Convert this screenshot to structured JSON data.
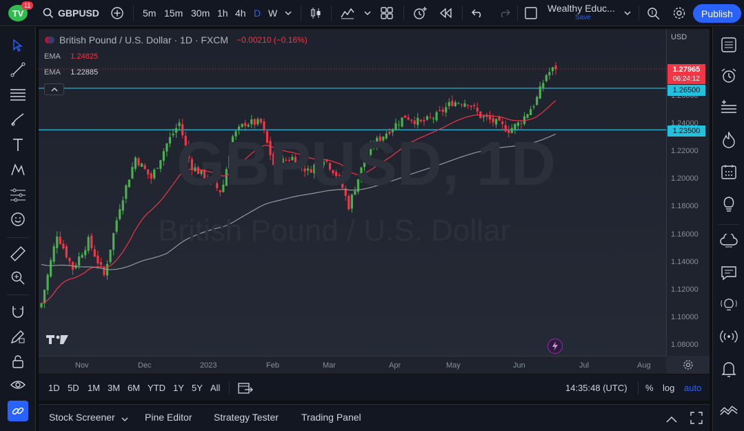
{
  "topbar": {
    "logo_text": "TV",
    "notification_count": "11",
    "symbol": "GBPUSD",
    "intervals": [
      "5m",
      "15m",
      "30m",
      "1h",
      "4h",
      "D",
      "W"
    ],
    "active_interval": "D",
    "layout_name": "Wealthy Educ...",
    "save_label": "Save",
    "publish_label": "Publish"
  },
  "chart": {
    "title": "British Pound / U.S. Dollar · 1D · FXCM",
    "change": "−0.00210 (−0.16%)",
    "ema1_label": "EMA",
    "ema1_value": "1.24825",
    "ema2_label": "EMA",
    "ema2_value": "1.22885",
    "watermark_symbol": "GBPUSD, 1D",
    "watermark_name": "British Pound / U.S. Dollar",
    "currency": "USD",
    "price_ticks": [
      "1.26000",
      "1.24000",
      "1.22000",
      "1.20000",
      "1.18000",
      "1.16000",
      "1.14000",
      "1.12000",
      "1.10000",
      "1.08000"
    ],
    "last_price": "1.27965",
    "countdown": "06:24:12",
    "hline1_value": "1.26500",
    "hline2_value": "1.23500",
    "time_labels": [
      "Nov",
      "Dec",
      "2023",
      "Feb",
      "Mar",
      "Apr",
      "May",
      "Jun",
      "Jul",
      "Aug"
    ],
    "colors": {
      "up": "#26a69a",
      "up_bar": "#4caf50",
      "down": "#f23645",
      "hline": "#22c1e0",
      "ema_fast": "#f23645",
      "ema_slow": "#9598a1"
    }
  },
  "bottombar": {
    "ranges": [
      "1D",
      "5D",
      "1M",
      "3M",
      "6M",
      "YTD",
      "1Y",
      "5Y",
      "All"
    ],
    "clock": "14:35:48 (UTC)",
    "percent": "%",
    "log": "log",
    "auto": "auto"
  },
  "panels": [
    "Stock Screener",
    "Pine Editor",
    "Strategy Tester",
    "Trading Panel"
  ]
}
